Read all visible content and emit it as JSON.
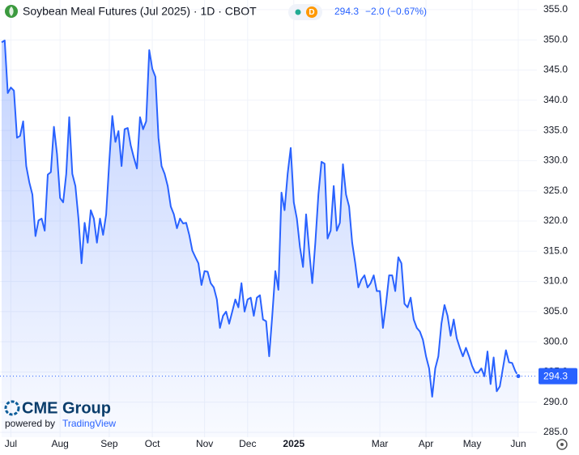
{
  "chart_data": {
    "type": "area",
    "title": "Soybean Meal Futures (Jul 2025) · 1D · CBOT",
    "interval_badge": "D",
    "change": "−2.0 (−0.67%)",
    "logo": "CME Group",
    "powered_by": "powered by",
    "powered_brand": "TradingView",
    "series": [
      {
        "name": "Soybean Meal Futures",
        "color": "#2962ff",
        "values": [
          349.6,
          349.9,
          341.2,
          342.1,
          341.6,
          333.8,
          334.1,
          336.5,
          329.1,
          326.4,
          324.4,
          317.5,
          320.1,
          320.4,
          318.4,
          327.7,
          328.1,
          335.6,
          331.1,
          323.8,
          323.1,
          327.8,
          337.2,
          327.8,
          325.8,
          320.4,
          313.0,
          319.7,
          316.4,
          321.8,
          320.4,
          316.4,
          320.4,
          317.7,
          321.1,
          329.8,
          337.4,
          333.1,
          334.9,
          329.1,
          335.2,
          335.4,
          332.5,
          330.5,
          328.7,
          337.2,
          335.2,
          336.5,
          348.3,
          345.2,
          343.9,
          333.8,
          329.1,
          327.8,
          325.8,
          322.4,
          321.1,
          318.8,
          320.4,
          319.6,
          319.7,
          317.7,
          315.1,
          314.0,
          313.0,
          309.4,
          311.7,
          311.6,
          309.7,
          309.0,
          307.0,
          302.3,
          304.3,
          305.0,
          303.0,
          305.0,
          307.0,
          305.7,
          309.7,
          305.0,
          307.0,
          307.3,
          304.3,
          307.3,
          307.7,
          303.7,
          303.4,
          297.6,
          304.3,
          311.7,
          308.6,
          324.7,
          321.8,
          327.8,
          332.1,
          323.1,
          320.4,
          315.7,
          312.4,
          321.1,
          315.1,
          309.7,
          316.4,
          324.4,
          329.8,
          329.5,
          317.1,
          318.4,
          325.8,
          318.4,
          319.7,
          329.4,
          324.4,
          322.4,
          316.4,
          313.0,
          309.0,
          310.3,
          311.0,
          309.0,
          309.7,
          311.0,
          308.4,
          308.4,
          302.3,
          306.3,
          311.0,
          311.0,
          308.4,
          314.0,
          313.0,
          306.3,
          305.7,
          307.3,
          303.7,
          302.3,
          301.7,
          300.3,
          297.6,
          295.6,
          290.9,
          295.6,
          297.6,
          303.0,
          306.1,
          304.3,
          301.0,
          303.7,
          300.6,
          299.0,
          297.6,
          299.0,
          297.6,
          296.0,
          294.9,
          294.9,
          295.6,
          294.3,
          298.4,
          293.0,
          297.4,
          291.8,
          292.6,
          295.6,
          298.6,
          296.6,
          296.5,
          295.2,
          294.3
        ]
      }
    ],
    "xlim": [
      0,
      168
    ],
    "xticks": [
      {
        "value": 3,
        "label": "Jul"
      },
      {
        "value": 19,
        "label": "Aug"
      },
      {
        "value": 35,
        "label": "Sep"
      },
      {
        "value": 49,
        "label": "Oct"
      },
      {
        "value": 66,
        "label": "Nov"
      },
      {
        "value": 80,
        "label": "Dec"
      },
      {
        "value": 95,
        "label": "2025"
      },
      {
        "value": 123,
        "label": "Mar"
      },
      {
        "value": 138,
        "label": "Apr"
      },
      {
        "value": 153,
        "label": "May"
      },
      {
        "value": 168,
        "label": "Jun"
      }
    ],
    "ylim": [
      284.2,
      356.6
    ],
    "yticks": [
      {
        "value": 285,
        "label": "285.0"
      },
      {
        "value": 290,
        "label": "290.0"
      },
      {
        "value": 295,
        "label": "295.0"
      },
      {
        "value": 300,
        "label": "300.0"
      },
      {
        "value": 305,
        "label": "305.0"
      },
      {
        "value": 310,
        "label": "310.0"
      },
      {
        "value": 315,
        "label": "315.0"
      },
      {
        "value": 320,
        "label": "320.0"
      },
      {
        "value": 325,
        "label": "325.0"
      },
      {
        "value": 330,
        "label": "330.0"
      },
      {
        "value": 335,
        "label": "335.0"
      },
      {
        "value": 340,
        "label": "340.0"
      },
      {
        "value": 345,
        "label": "345.0"
      },
      {
        "value": 350,
        "label": "350.0"
      },
      {
        "value": 355,
        "label": "355.0"
      }
    ],
    "grid": true
  }
}
